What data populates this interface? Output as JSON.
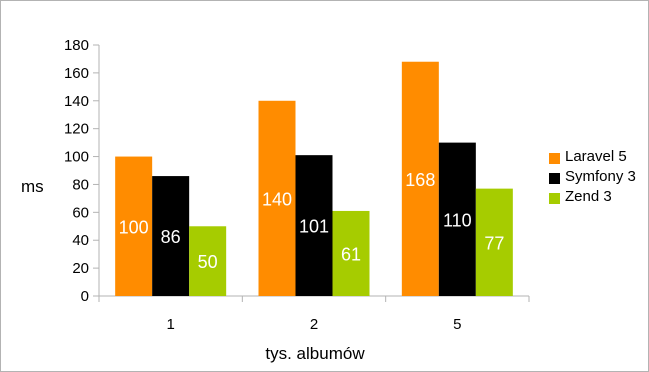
{
  "chart_data": {
    "type": "bar",
    "categories": [
      "1",
      "2",
      "5"
    ],
    "series": [
      {
        "name": "Laravel 5",
        "values": [
          100,
          140,
          168
        ],
        "color": "#ff8c00"
      },
      {
        "name": "Symfony 3",
        "values": [
          86,
          101,
          110
        ],
        "color": "#000000"
      },
      {
        "name": "Zend 3",
        "values": [
          50,
          61,
          77
        ],
        "color": "#a6cc00"
      }
    ],
    "title": "",
    "xlabel": "tys. albumów",
    "ylabel": "ms",
    "ylim": [
      0,
      180
    ],
    "yticks": [
      0,
      20,
      40,
      60,
      80,
      100,
      120,
      140,
      160,
      180
    ],
    "grid": false,
    "legend_position": "right"
  }
}
